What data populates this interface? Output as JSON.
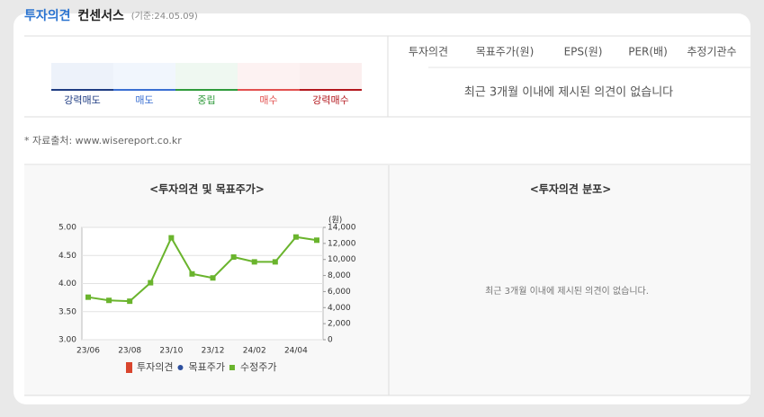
{
  "header": {
    "title": "투자의견",
    "subtitle": "컨센서스",
    "date": "(기준:24.05.09)"
  },
  "scale": [
    {
      "label": "강력매도",
      "color": "#1f3c82",
      "fill": "#edf2fa"
    },
    {
      "label": "매도",
      "color": "#3a6fd2",
      "fill": "#f1f6fd"
    },
    {
      "label": "중립",
      "color": "#2f9a3b",
      "fill": "#eff8f1"
    },
    {
      "label": "매수",
      "color": "#e2504f",
      "fill": "#fdf2f2"
    },
    {
      "label": "강력매수",
      "color": "#b3171d",
      "fill": "#fbeeee"
    }
  ],
  "table": {
    "headers": [
      "투자의견",
      "목표주가(원)",
      "EPS(원)",
      "PER(배)",
      "추정기관수"
    ],
    "message": "최근 3개월 이내에 제시된 의견이 없습니다"
  },
  "source": "* 자료출처: www.wisereport.co.kr",
  "distribution": {
    "title": "<투자의견 분포>",
    "message": "최근 3개월 이내에 제시된 의견이 없습니다."
  },
  "chart_data": {
    "type": "line",
    "title": "<투자의견 및 목표주가>",
    "categories": [
      "23/06",
      null,
      "23/08",
      null,
      "23/10",
      null,
      "23/12",
      null,
      "24/02",
      null,
      "24/04",
      null
    ],
    "ylim": [
      3,
      5
    ],
    "yticks": [
      {
        "value": 3,
        "label": "3.00"
      },
      {
        "value": 3.5,
        "label": "3.50"
      },
      {
        "value": 4,
        "label": "4.00"
      },
      {
        "value": 4.5,
        "label": "4.50"
      },
      {
        "value": 5,
        "label": "5.00"
      }
    ],
    "y2lim": [
      0,
      14000
    ],
    "y2ticks": [
      0,
      {
        "value": 2000,
        "label": "2,000"
      },
      {
        "value": 4000,
        "label": "4,000"
      },
      {
        "value": 6000,
        "label": "6,000"
      },
      {
        "value": 8000,
        "label": "8,000"
      },
      {
        "value": 10000,
        "label": "10,000"
      },
      {
        "value": 12000,
        "label": "12,000"
      },
      {
        "value": 14000,
        "label": "14,000"
      }
    ],
    "y2label": "(원)",
    "grid": true,
    "series": [
      {
        "name": "투자의견",
        "color": "#d9452e",
        "marker": "square",
        "values": [
          null,
          null,
          null,
          null,
          null,
          null,
          null,
          null,
          null,
          null,
          null,
          null
        ]
      },
      {
        "name": "목표주가",
        "color": "#2d4f9e",
        "marker": "circle",
        "axis": "y2",
        "values": [
          null,
          null,
          null,
          null,
          null,
          null,
          null,
          null,
          null,
          null,
          null,
          null
        ]
      },
      {
        "name": "수정주가",
        "color": "#6ab42d",
        "marker": "square",
        "axis": "y2",
        "values": [
          5300,
          4900,
          4800,
          7100,
          12700,
          8200,
          7700,
          10300,
          9700,
          9700,
          12800,
          12400
        ]
      }
    ]
  }
}
